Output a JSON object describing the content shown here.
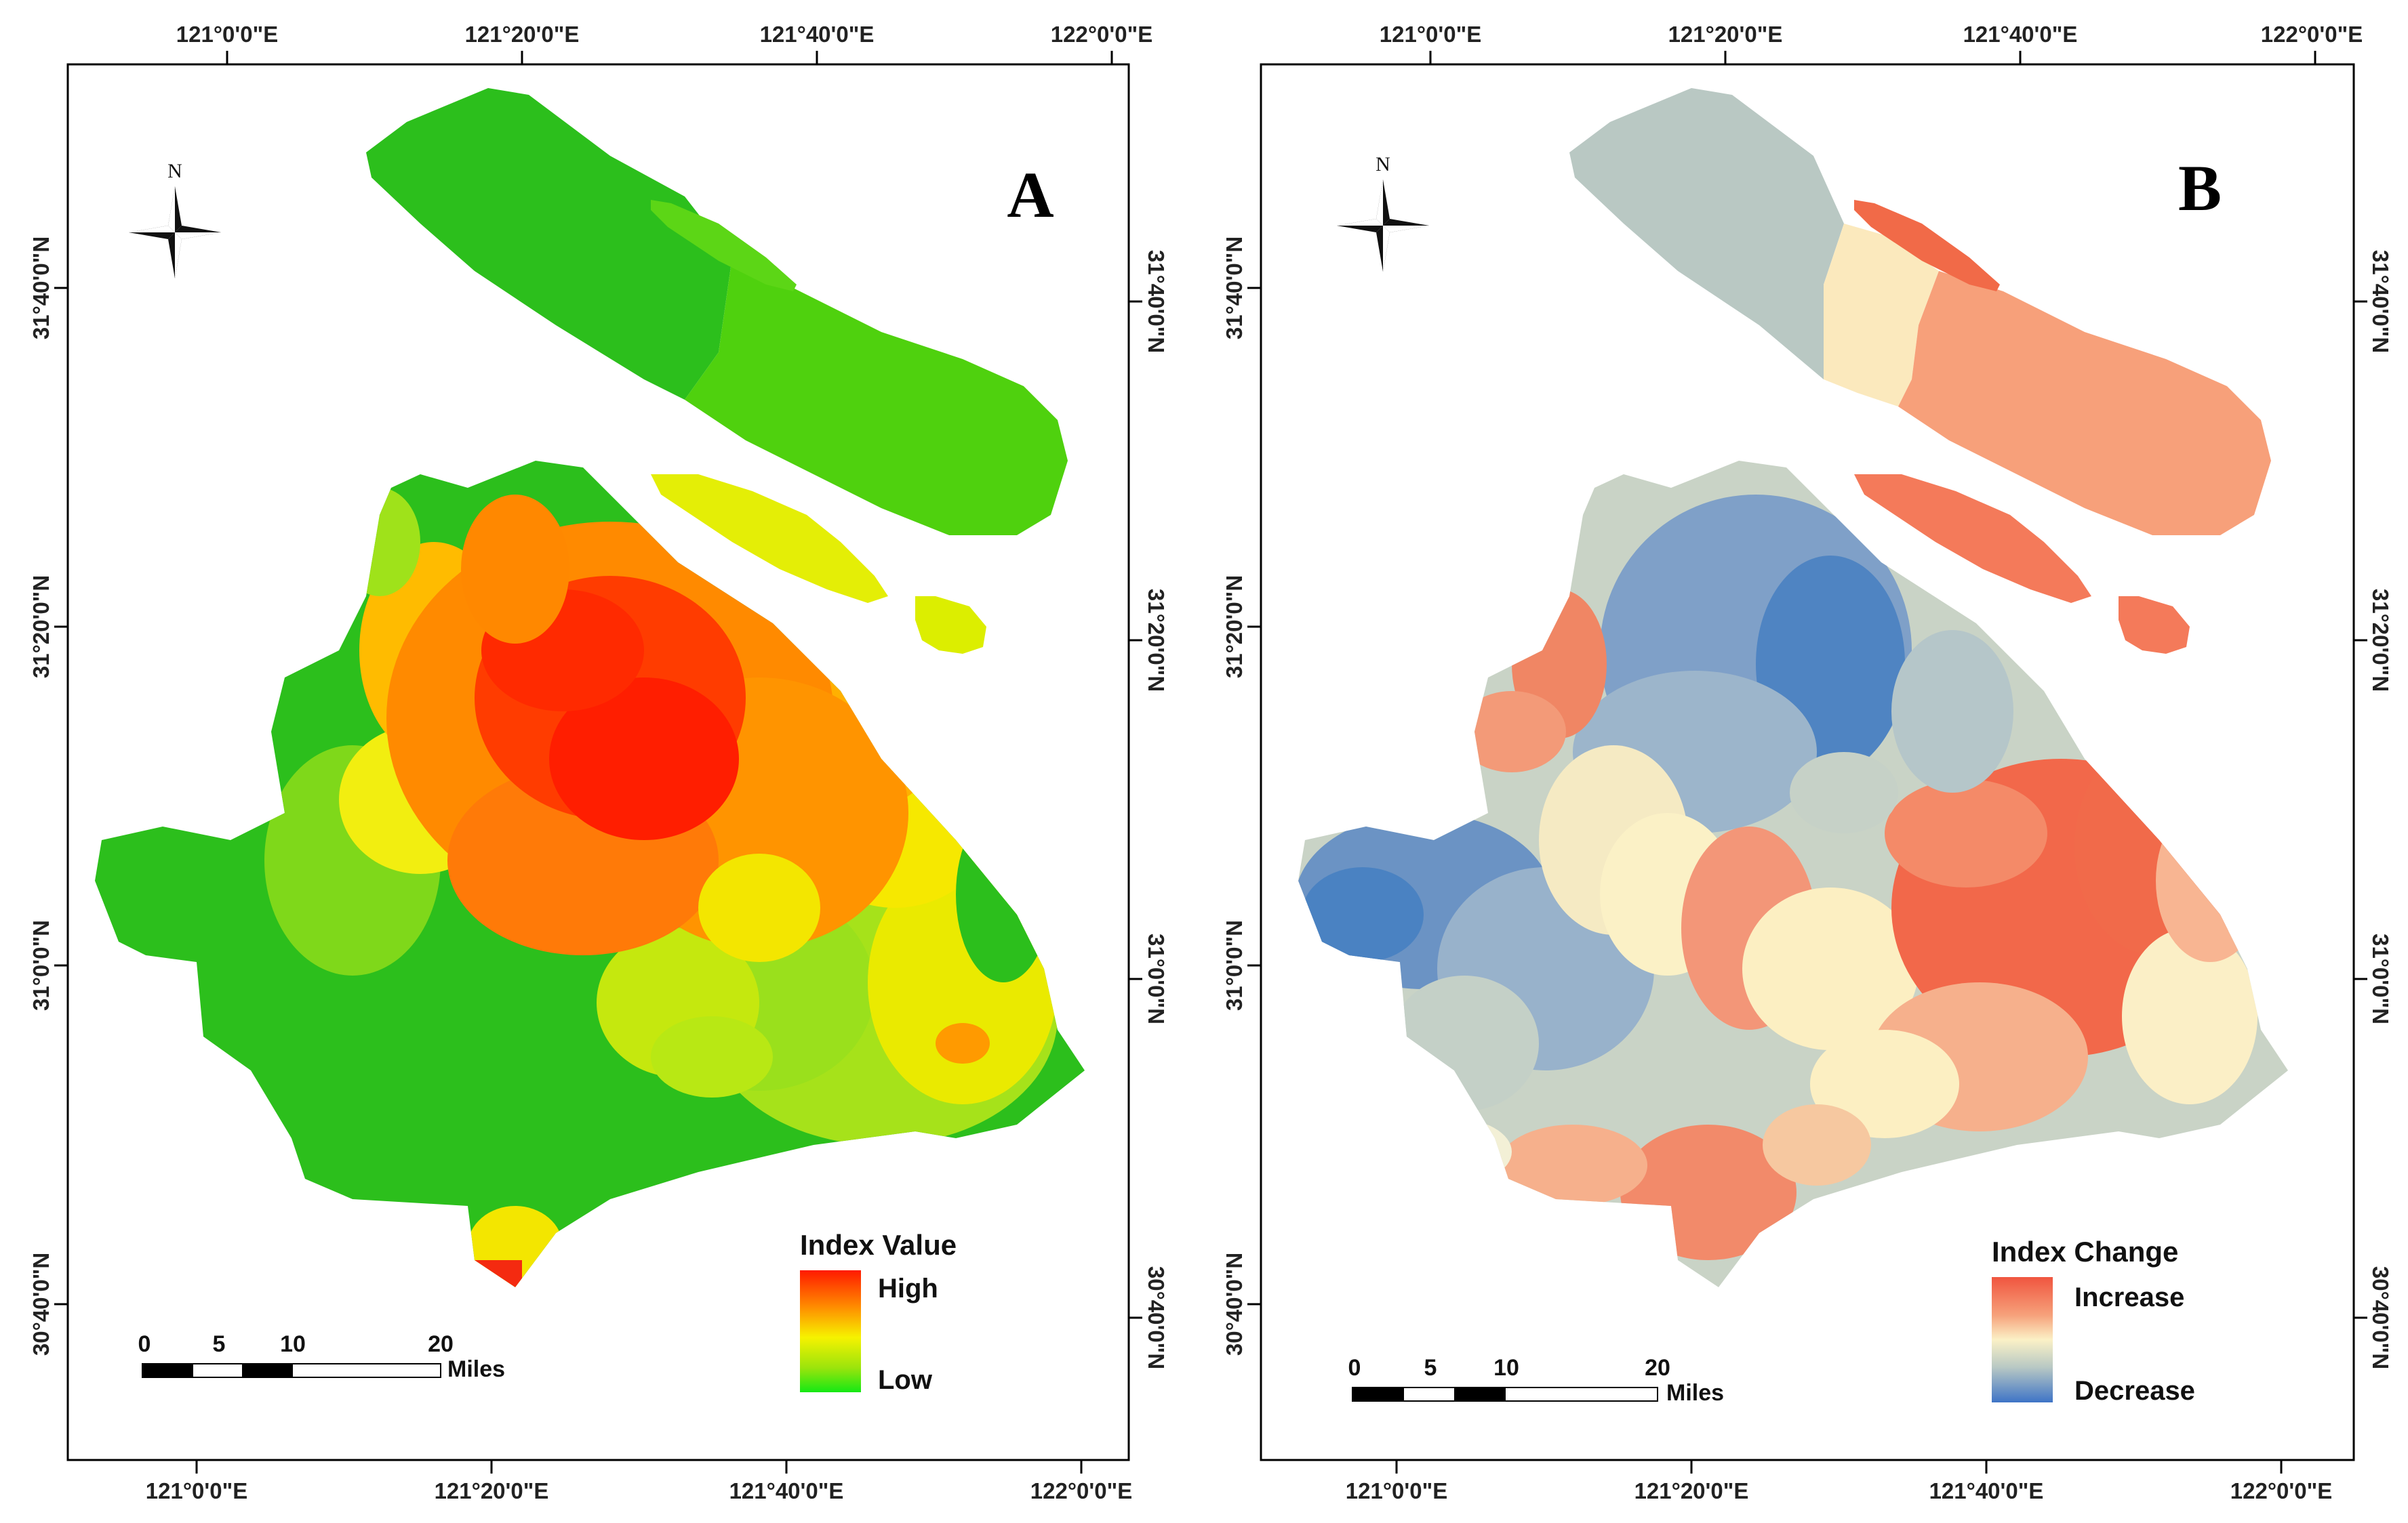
{
  "colors": {
    "panel_a": {
      "high": "#ff1a00",
      "orange": "#ff8c00",
      "yellow": "#f6f200",
      "lime": "#9be40c",
      "green": "#22c21a"
    },
    "panel_b": {
      "increase": "#f0553f",
      "salmon": "#f6a07a",
      "pale": "#fbf1c6",
      "grey": "#b8c8c4",
      "blue": "#4a84c3"
    }
  },
  "panels": [
    {
      "letter": "A",
      "x_top_ticks": [
        "121°0'0\"E",
        "121°20'0\"E",
        "121°40'0\"E",
        "122°0'0\"E"
      ],
      "x_bottom_ticks": [
        "121°0'0\"E",
        "121°20'0\"E",
        "121°40'0\"E",
        "122°0'0\"E"
      ],
      "y_left_ticks": [
        "31°40'0\"N",
        "31°20'0\"N",
        "31°0'0\"N",
        "30°40'0\"N"
      ],
      "y_right_ticks": [
        "31°40'0\"N",
        "31°20'0\"N",
        "31°0'0\"N",
        "30°40'0\"N"
      ],
      "north_label": "N",
      "legend": {
        "title": "Index Value",
        "top_label": "High",
        "bottom_label": "Low"
      },
      "scale": {
        "labels": [
          "0",
          "5",
          "10",
          "20"
        ],
        "unit": "Miles"
      }
    },
    {
      "letter": "B",
      "x_top_ticks": [
        "121°0'0\"E",
        "121°20'0\"E",
        "121°40'0\"E",
        "122°0'0\"E"
      ],
      "x_bottom_ticks": [
        "121°0'0\"E",
        "121°20'0\"E",
        "121°40'0\"E",
        "122°0'0\"E"
      ],
      "y_left_ticks": [
        "31°40'0\"N",
        "31°20'0\"N",
        "31°0'0\"N",
        "30°40'0\"N"
      ],
      "y_right_ticks": [
        "31°40'0\"N",
        "31°20'0\"N",
        "31°0'0\"N",
        "30°40'0\"N"
      ],
      "north_label": "N",
      "legend": {
        "title": "Index Change",
        "top_label": "Increase",
        "bottom_label": "Decrease"
      },
      "scale": {
        "labels": [
          "0",
          "5",
          "10",
          "20"
        ],
        "unit": "Miles"
      }
    }
  ]
}
